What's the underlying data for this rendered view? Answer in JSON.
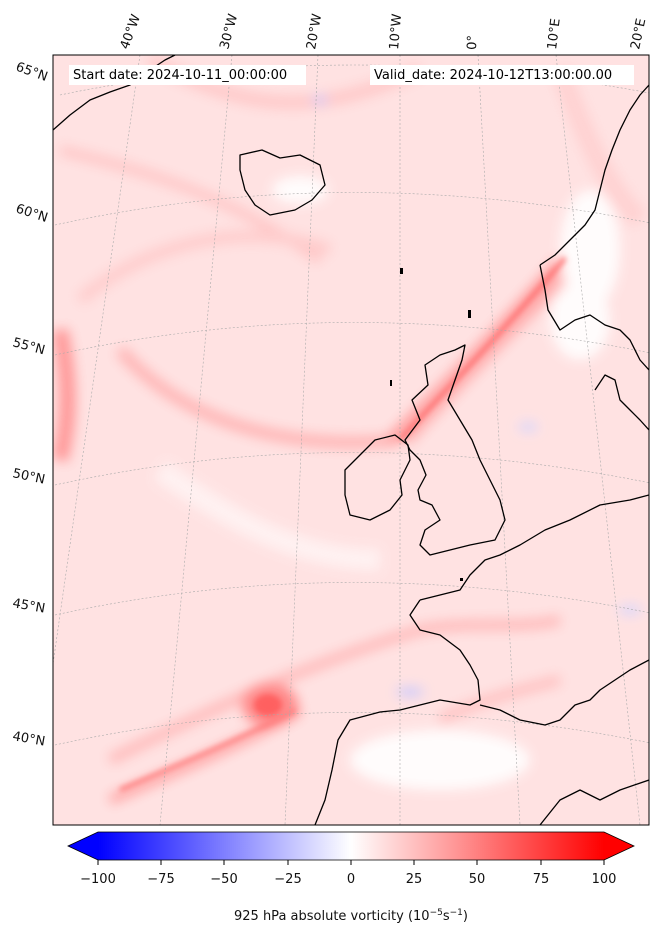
{
  "header": {
    "start_date": "Start date: 2024-10-11_00:00:00",
    "valid_date": "Valid_date: 2024-10-12T13:00:00.00"
  },
  "map": {
    "lon_labels": [
      "40°W",
      "30°W",
      "20°W",
      "10°W",
      "0°",
      "10°E",
      "20°E"
    ],
    "lat_labels": [
      "65°N",
      "60°N",
      "55°N",
      "50°N",
      "45°N",
      "40°N"
    ]
  },
  "colorbar": {
    "ticks": [
      "−100",
      "−75",
      "−50",
      "−25",
      "0",
      "25",
      "50",
      "75",
      "100"
    ],
    "label_main": "925 hPa absolute vorticity (10",
    "label_exp1": "−5",
    "label_mid": "s",
    "label_exp2": "−1",
    "label_end": ")",
    "negative_color": "#0000ff",
    "zero_color": "#ffffff",
    "positive_color": "#ff0000"
  }
}
